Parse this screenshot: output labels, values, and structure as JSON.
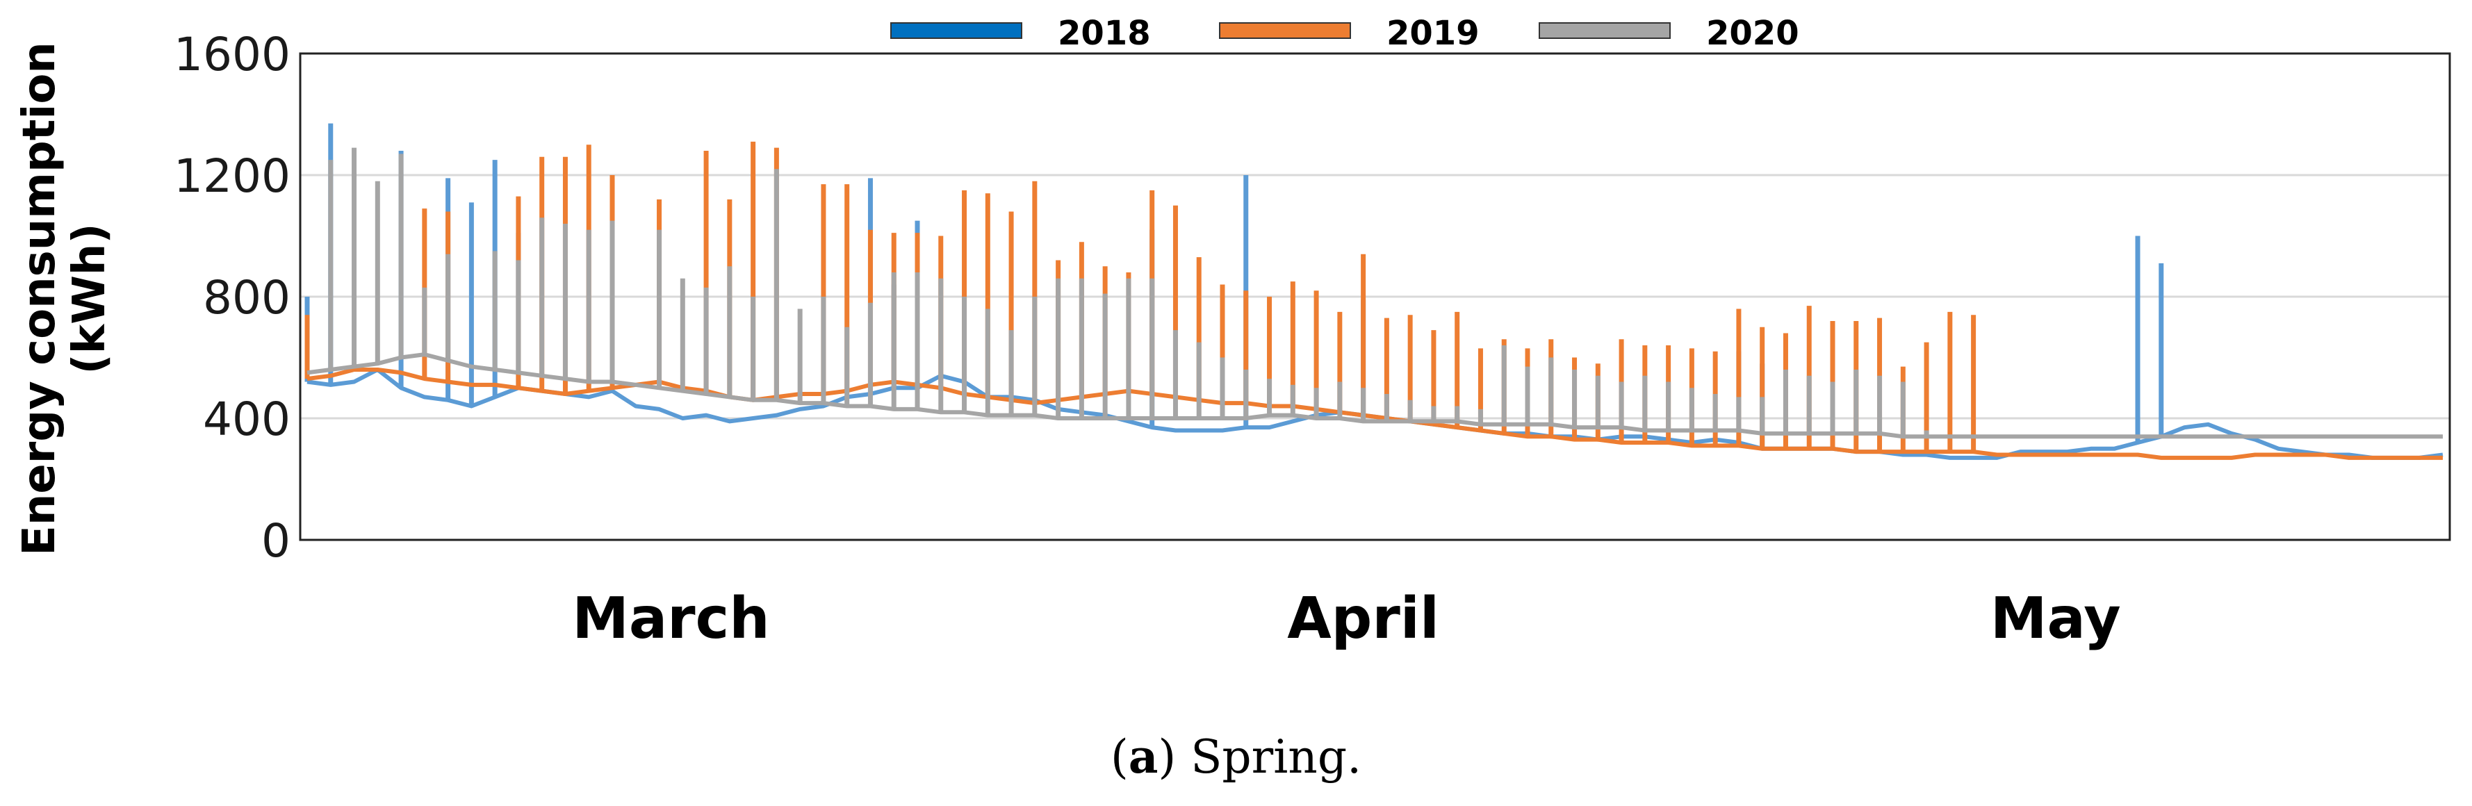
{
  "caption": {
    "label": "a",
    "text": "Spring."
  },
  "chart_data": {
    "type": "line",
    "title": "",
    "xlabel": "",
    "ylabel": "Energy consumption (kWh)",
    "ylabel_lines": [
      "Energy consumption",
      "(kWh)"
    ],
    "ylim": [
      0,
      1600
    ],
    "yticks": [
      0,
      400,
      800,
      1200,
      1600
    ],
    "grid": true,
    "legend_position": "top-center",
    "x_range": [
      1,
      92
    ],
    "month_labels": [
      {
        "label": "March",
        "x": 16.5
      },
      {
        "label": "April",
        "x": 46
      },
      {
        "label": "May",
        "x": 75.5
      }
    ],
    "series": [
      {
        "name": "2018",
        "color": "#5b9bd5",
        "legend_color": "#0070c0",
        "values": [
          520,
          510,
          520,
          560,
          500,
          470,
          460,
          440,
          470,
          500,
          490,
          480,
          470,
          490,
          440,
          430,
          400,
          410,
          390,
          400,
          410,
          430,
          440,
          470,
          480,
          500,
          500,
          540,
          520,
          470,
          470,
          460,
          430,
          420,
          410,
          390,
          370,
          360,
          360,
          360,
          370,
          370,
          390,
          410,
          420,
          410,
          400,
          390,
          380,
          370,
          360,
          350,
          350,
          340,
          340,
          330,
          340,
          340,
          330,
          320,
          330,
          320,
          300,
          300,
          300,
          300,
          290,
          290,
          280,
          280,
          270,
          270,
          270,
          290,
          290,
          290,
          300,
          300,
          320,
          340,
          370,
          380,
          350,
          330,
          300,
          290,
          280,
          280,
          270,
          270,
          270,
          280
        ],
        "spikes": [
          [
            1,
            800
          ],
          [
            2,
            1370
          ],
          [
            5,
            1280
          ],
          [
            7,
            1190
          ],
          [
            8,
            1110
          ],
          [
            9,
            1250
          ],
          [
            10,
            1010
          ],
          [
            25,
            1190
          ],
          [
            26,
            840
          ],
          [
            27,
            1050
          ],
          [
            37,
            1020
          ],
          [
            41,
            1200
          ],
          [
            46,
            790
          ],
          [
            62,
            620
          ],
          [
            63,
            580
          ],
          [
            79,
            1000
          ],
          [
            80,
            910
          ]
        ]
      },
      {
        "name": "2019",
        "color": "#ed7d31",
        "legend_color": "#ed7d31",
        "values": [
          530,
          540,
          560,
          560,
          550,
          530,
          520,
          510,
          510,
          500,
          490,
          480,
          490,
          500,
          510,
          520,
          500,
          490,
          470,
          460,
          470,
          480,
          480,
          490,
          510,
          520,
          510,
          500,
          480,
          470,
          460,
          450,
          460,
          470,
          480,
          490,
          480,
          470,
          460,
          450,
          450,
          440,
          440,
          430,
          420,
          410,
          400,
          390,
          380,
          370,
          360,
          350,
          340,
          340,
          330,
          330,
          320,
          320,
          320,
          310,
          310,
          310,
          300,
          300,
          300,
          300,
          290,
          290,
          290,
          290,
          290,
          290,
          280,
          280,
          280,
          280,
          280,
          280,
          280,
          270,
          270,
          270,
          270,
          280,
          280,
          280,
          280,
          270,
          270,
          270,
          270,
          270
        ],
        "spikes": [
          [
            1,
            740
          ],
          [
            6,
            1090
          ],
          [
            7,
            1080
          ],
          [
            10,
            1130
          ],
          [
            11,
            1260
          ],
          [
            12,
            1260
          ],
          [
            13,
            1300
          ],
          [
            14,
            1200
          ],
          [
            16,
            1120
          ],
          [
            18,
            1280
          ],
          [
            19,
            1120
          ],
          [
            20,
            1310
          ],
          [
            21,
            1290
          ],
          [
            23,
            1170
          ],
          [
            24,
            1170
          ],
          [
            25,
            1020
          ],
          [
            26,
            1010
          ],
          [
            27,
            1010
          ],
          [
            28,
            1000
          ],
          [
            29,
            1150
          ],
          [
            30,
            1140
          ],
          [
            31,
            1080
          ],
          [
            32,
            1180
          ],
          [
            33,
            920
          ],
          [
            34,
            980
          ],
          [
            35,
            900
          ],
          [
            36,
            880
          ],
          [
            37,
            1150
          ],
          [
            38,
            1100
          ],
          [
            39,
            930
          ],
          [
            40,
            840
          ],
          [
            41,
            820
          ],
          [
            42,
            800
          ],
          [
            43,
            850
          ],
          [
            44,
            820
          ],
          [
            45,
            750
          ],
          [
            46,
            940
          ],
          [
            47,
            730
          ],
          [
            48,
            740
          ],
          [
            49,
            690
          ],
          [
            50,
            750
          ],
          [
            51,
            630
          ],
          [
            52,
            660
          ],
          [
            53,
            630
          ],
          [
            54,
            660
          ],
          [
            55,
            600
          ],
          [
            56,
            580
          ],
          [
            57,
            660
          ],
          [
            58,
            640
          ],
          [
            59,
            640
          ],
          [
            60,
            630
          ],
          [
            61,
            620
          ],
          [
            62,
            760
          ],
          [
            63,
            700
          ],
          [
            64,
            680
          ],
          [
            65,
            770
          ],
          [
            66,
            720
          ],
          [
            67,
            720
          ],
          [
            68,
            730
          ],
          [
            69,
            570
          ],
          [
            70,
            650
          ],
          [
            71,
            750
          ],
          [
            72,
            740
          ]
        ]
      },
      {
        "name": "2020",
        "color": "#a5a5a5",
        "legend_color": "#a5a5a5",
        "values": [
          550,
          560,
          570,
          580,
          600,
          610,
          590,
          570,
          560,
          550,
          540,
          530,
          520,
          520,
          510,
          500,
          490,
          480,
          470,
          460,
          460,
          450,
          450,
          440,
          440,
          430,
          430,
          420,
          420,
          410,
          410,
          410,
          400,
          400,
          400,
          400,
          400,
          400,
          400,
          400,
          400,
          410,
          410,
          400,
          400,
          390,
          390,
          390,
          390,
          390,
          380,
          380,
          380,
          380,
          370,
          370,
          370,
          360,
          360,
          360,
          360,
          360,
          350,
          350,
          350,
          350,
          350,
          350,
          340,
          340,
          340,
          340,
          340,
          340,
          340,
          340,
          340,
          340,
          340,
          340,
          340,
          340,
          340,
          340,
          340,
          340,
          340,
          340,
          340,
          340,
          340,
          340
        ],
        "spikes": [
          [
            2,
            1250
          ],
          [
            3,
            1290
          ],
          [
            4,
            1180
          ],
          [
            5,
            1270
          ],
          [
            6,
            830
          ],
          [
            7,
            940
          ],
          [
            9,
            950
          ],
          [
            10,
            920
          ],
          [
            11,
            1060
          ],
          [
            12,
            1040
          ],
          [
            13,
            1020
          ],
          [
            14,
            1050
          ],
          [
            16,
            1020
          ],
          [
            17,
            860
          ],
          [
            18,
            830
          ],
          [
            19,
            900
          ],
          [
            20,
            800
          ],
          [
            21,
            1220
          ],
          [
            22,
            760
          ],
          [
            23,
            800
          ],
          [
            24,
            700
          ],
          [
            25,
            780
          ],
          [
            26,
            880
          ],
          [
            27,
            880
          ],
          [
            28,
            860
          ],
          [
            29,
            800
          ],
          [
            30,
            760
          ],
          [
            31,
            690
          ],
          [
            32,
            800
          ],
          [
            33,
            860
          ],
          [
            34,
            860
          ],
          [
            35,
            810
          ],
          [
            36,
            860
          ],
          [
            37,
            860
          ],
          [
            38,
            690
          ],
          [
            39,
            650
          ],
          [
            40,
            600
          ],
          [
            41,
            560
          ],
          [
            42,
            530
          ],
          [
            43,
            510
          ],
          [
            44,
            500
          ],
          [
            45,
            520
          ],
          [
            46,
            500
          ],
          [
            47,
            480
          ],
          [
            48,
            460
          ],
          [
            49,
            440
          ],
          [
            50,
            440
          ],
          [
            51,
            430
          ],
          [
            52,
            640
          ],
          [
            53,
            570
          ],
          [
            54,
            600
          ],
          [
            55,
            560
          ],
          [
            56,
            540
          ],
          [
            57,
            520
          ],
          [
            58,
            540
          ],
          [
            59,
            520
          ],
          [
            60,
            500
          ],
          [
            61,
            480
          ],
          [
            62,
            470
          ],
          [
            63,
            470
          ],
          [
            64,
            560
          ],
          [
            65,
            540
          ],
          [
            66,
            520
          ],
          [
            67,
            560
          ],
          [
            68,
            540
          ],
          [
            69,
            520
          ],
          [
            70,
            360
          ]
        ]
      }
    ]
  }
}
